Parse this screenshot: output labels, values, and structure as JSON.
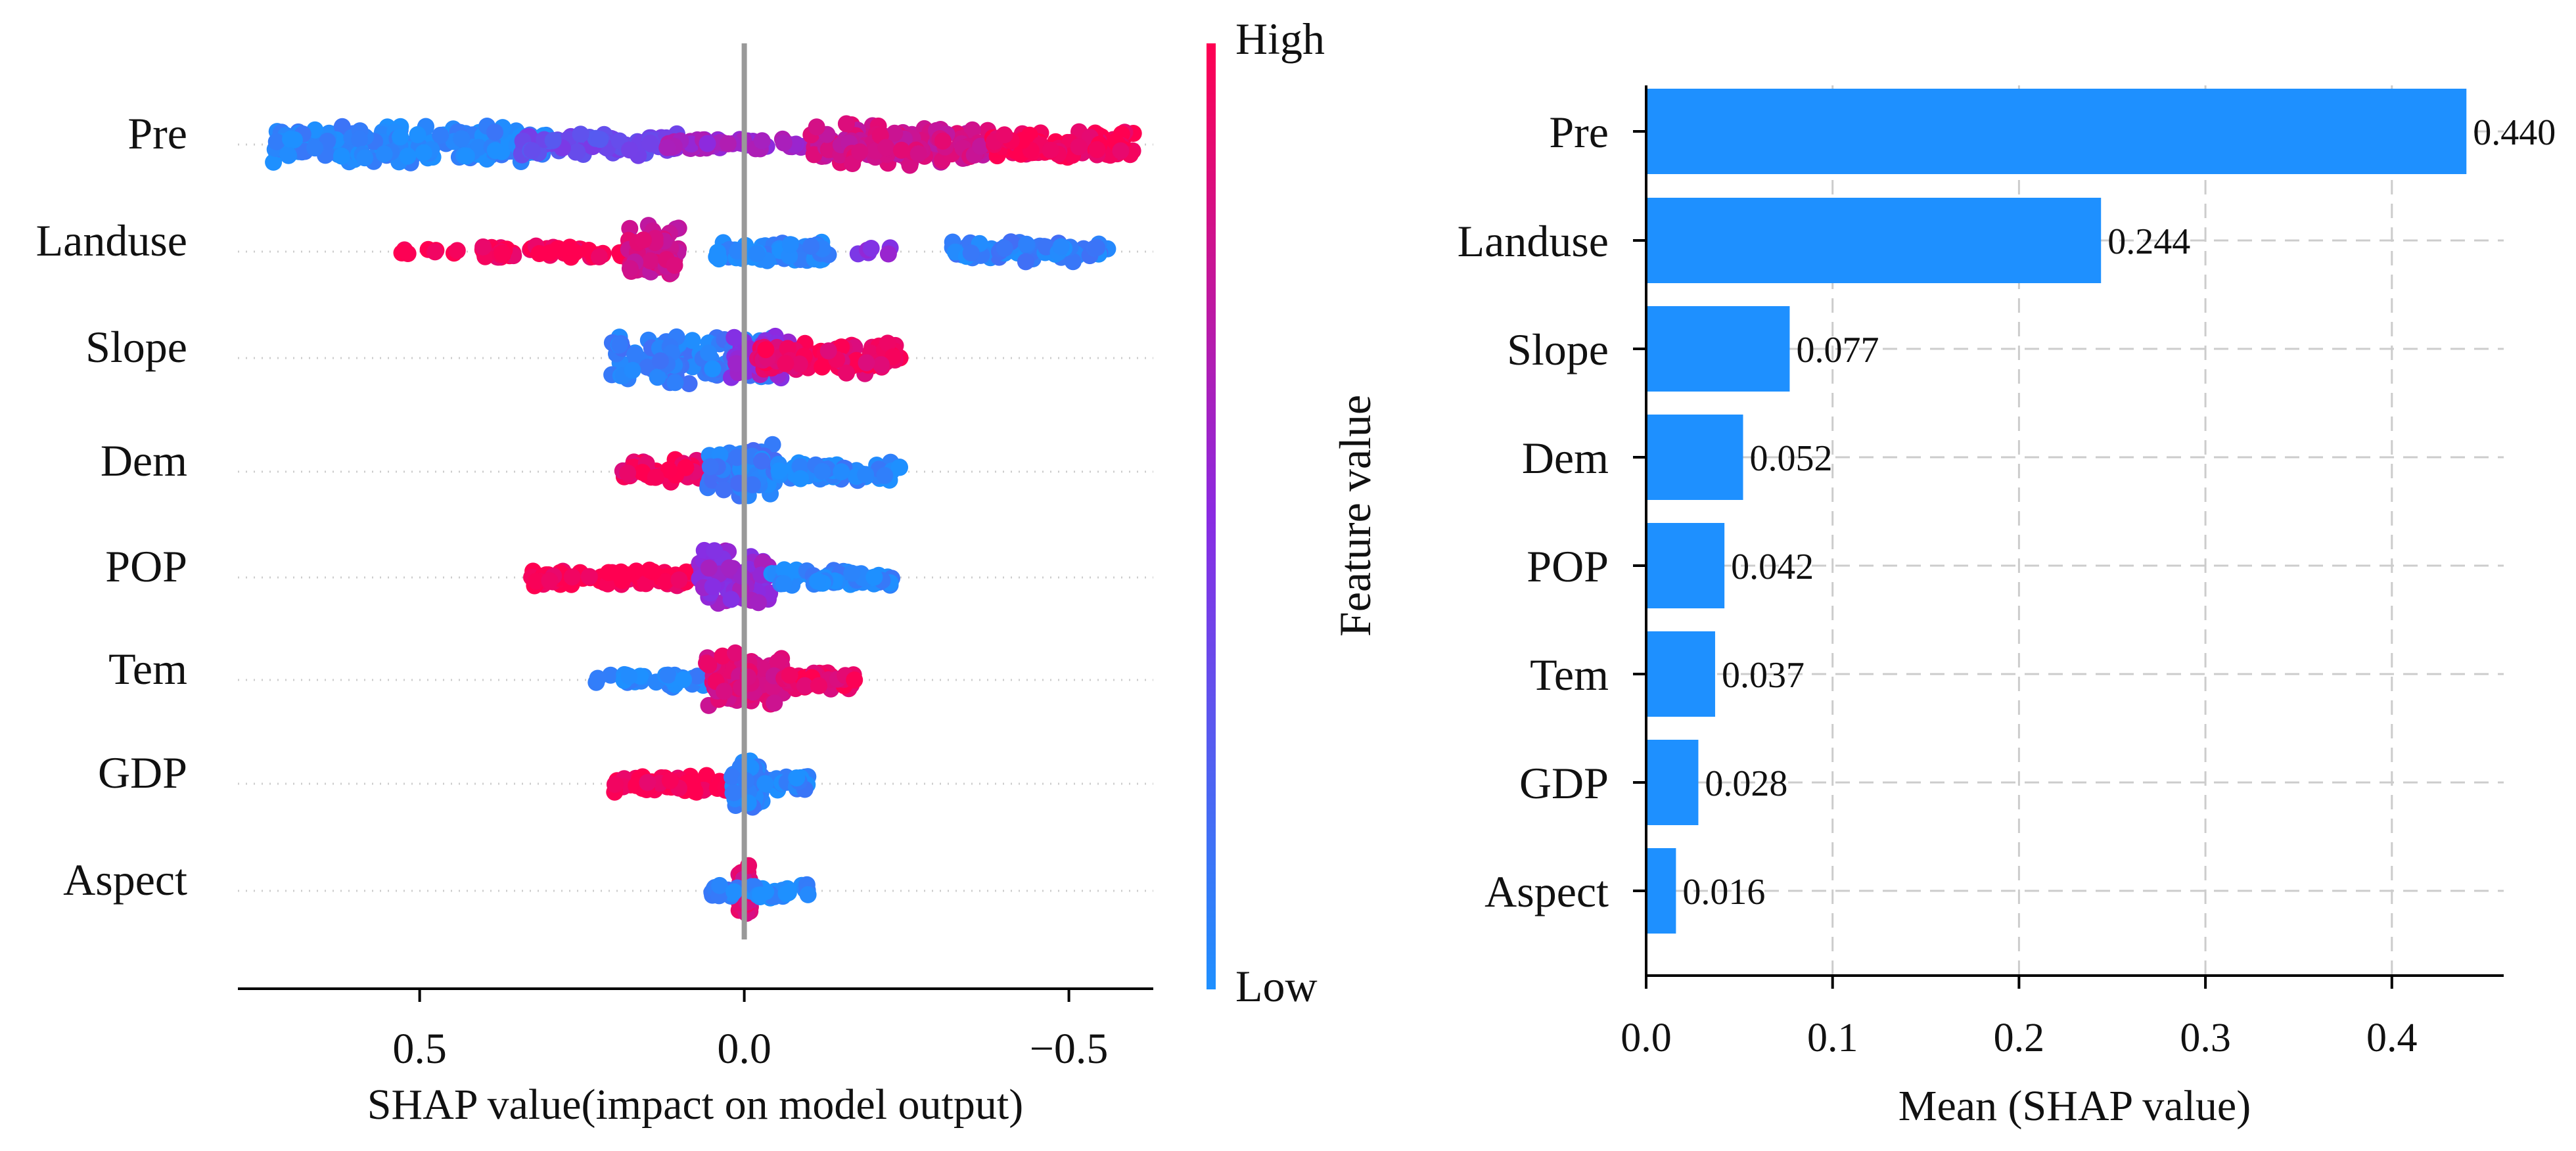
{
  "colors": {
    "low": "#1e90ff",
    "mid": "#8a2be2",
    "high": "#ff0051",
    "bar": "#1e90ff",
    "axis": "#000000",
    "zero_line": "#999999",
    "grid": "#cccccc"
  },
  "chart_data": [
    {
      "type": "scatter",
      "subtype": "shap-beeswarm",
      "title": "",
      "xlabel": "SHAP value(impact on model output)",
      "ylabel": "",
      "x_axis_inverted": true,
      "xlim": [
        0.78,
        -0.63
      ],
      "xticks": [
        0.5,
        0.0,
        -0.5
      ],
      "xtick_labels": [
        "0.5",
        "0.0",
        "−0.5"
      ],
      "features": [
        "Pre",
        "Landuse",
        "Slope",
        "Dem",
        "POP",
        "Tem",
        "GDP",
        "Aspect"
      ],
      "colorbar": {
        "label": "Feature value",
        "high_label": "High",
        "low_label": "Low"
      },
      "feature_distributions": [
        {
          "feature": "Pre",
          "range": [
            -0.6,
            0.73
          ],
          "clusters": [
            {
              "min": 0.3,
              "max": 0.73,
              "color": 0.05,
              "spread": 0.4,
              "count": 220
            },
            {
              "min": 0.1,
              "max": 0.35,
              "color": 0.35,
              "spread": 0.25,
              "count": 90
            },
            {
              "min": -0.1,
              "max": 0.12,
              "color": 0.6,
              "spread": 0.12,
              "count": 60
            },
            {
              "min": -0.38,
              "max": -0.1,
              "color": 0.8,
              "spread": 0.45,
              "count": 160
            },
            {
              "min": -0.6,
              "max": -0.38,
              "color": 0.97,
              "spread": 0.3,
              "count": 90
            }
          ]
        },
        {
          "feature": "Landuse",
          "range": [
            -0.56,
            0.55
          ],
          "clusters": [
            {
              "min": 0.38,
              "max": 0.55,
              "color": 1.0,
              "spread": 0.06,
              "count": 10
            },
            {
              "min": 0.16,
              "max": 0.41,
              "color": 0.98,
              "spread": 0.14,
              "count": 70
            },
            {
              "min": 0.1,
              "max": 0.18,
              "color": 0.8,
              "spread": 0.6,
              "count": 60
            },
            {
              "min": -0.13,
              "max": 0.05,
              "color": 0.04,
              "spread": 0.22,
              "count": 70
            },
            {
              "min": -0.25,
              "max": -0.17,
              "color": 0.5,
              "spread": 0.1,
              "count": 6
            },
            {
              "min": -0.56,
              "max": -0.32,
              "color": 0.08,
              "spread": 0.22,
              "count": 70
            }
          ]
        },
        {
          "feature": "Slope",
          "range": [
            -0.24,
            0.21
          ],
          "clusters": [
            {
              "min": -0.05,
              "max": 0.21,
              "color": 0.08,
              "spread": 0.6,
              "count": 110
            },
            {
              "min": -0.07,
              "max": 0.02,
              "color": 0.55,
              "spread": 0.5,
              "count": 40
            },
            {
              "min": -0.24,
              "max": -0.02,
              "color": 0.93,
              "spread": 0.35,
              "count": 100
            }
          ]
        },
        {
          "feature": "Dem",
          "range": [
            -0.24,
            0.19
          ],
          "clusters": [
            {
              "min": 0.05,
              "max": 0.19,
              "color": 0.92,
              "spread": 0.25,
              "count": 60
            },
            {
              "min": -0.05,
              "max": 0.06,
              "color": 0.1,
              "spread": 0.6,
              "count": 80
            },
            {
              "min": -0.24,
              "max": -0.05,
              "color": 0.05,
              "spread": 0.2,
              "count": 70
            }
          ]
        },
        {
          "feature": "POP",
          "range": [
            -0.23,
            0.33
          ],
          "clusters": [
            {
              "min": 0.06,
              "max": 0.33,
              "color": 0.98,
              "spread": 0.18,
              "count": 100
            },
            {
              "min": -0.04,
              "max": 0.07,
              "color": 0.55,
              "spread": 0.6,
              "count": 80
            },
            {
              "min": -0.23,
              "max": -0.04,
              "color": 0.05,
              "spread": 0.18,
              "count": 60
            }
          ]
        },
        {
          "feature": "Tem",
          "range": [
            -0.17,
            0.23
          ],
          "clusters": [
            {
              "min": 0.05,
              "max": 0.23,
              "color": 0.05,
              "spread": 0.15,
              "count": 40
            },
            {
              "min": -0.06,
              "max": 0.06,
              "color": 0.85,
              "spread": 0.6,
              "count": 100
            },
            {
              "min": -0.17,
              "max": -0.06,
              "color": 0.92,
              "spread": 0.2,
              "count": 60
            }
          ]
        },
        {
          "feature": "GDP",
          "range": [
            -0.1,
            0.2
          ],
          "clusters": [
            {
              "min": 0.02,
              "max": 0.2,
              "color": 0.98,
              "spread": 0.18,
              "count": 70
            },
            {
              "min": -0.03,
              "max": 0.02,
              "color": 0.06,
              "spread": 0.55,
              "count": 60
            },
            {
              "min": -0.1,
              "max": -0.03,
              "color": 0.05,
              "spread": 0.15,
              "count": 30
            }
          ]
        },
        {
          "feature": "Aspect",
          "range": [
            -0.1,
            0.05
          ],
          "clusters": [
            {
              "min": -0.01,
              "max": 0.01,
              "color": 0.85,
              "spread": 0.55,
              "count": 60
            },
            {
              "min": -0.1,
              "max": -0.01,
              "color": 0.05,
              "spread": 0.18,
              "count": 30
            },
            {
              "min": 0.01,
              "max": 0.05,
              "color": 0.1,
              "spread": 0.12,
              "count": 15
            }
          ]
        }
      ]
    },
    {
      "type": "bar",
      "orientation": "horizontal",
      "title": "",
      "xlabel": "Mean (SHAP value)",
      "ylabel": "",
      "categories": [
        "Pre",
        "Landuse",
        "Slope",
        "Dem",
        "POP",
        "Tem",
        "GDP",
        "Aspect"
      ],
      "values": [
        0.44,
        0.244,
        0.077,
        0.052,
        0.042,
        0.037,
        0.028,
        0.016
      ],
      "value_labels": [
        "0.440",
        "0.244",
        "0.077",
        "0.052",
        "0.042",
        "0.037",
        "0.028",
        "0.016"
      ],
      "xlim": [
        0,
        0.46
      ],
      "xticks": [
        0.0,
        0.1,
        0.2,
        0.3,
        0.4
      ],
      "xtick_labels": [
        "0.0",
        "0.1",
        "0.2",
        "0.3",
        "0.4"
      ],
      "grid": true
    }
  ]
}
